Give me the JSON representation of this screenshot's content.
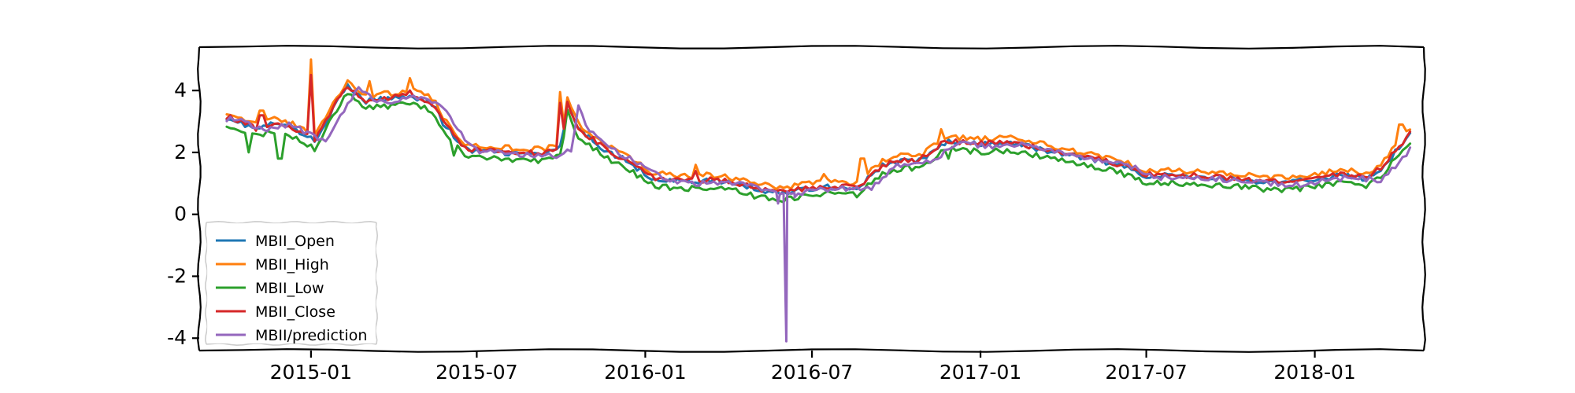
{
  "chart_data": {
    "type": "line",
    "title": "",
    "xlabel": "",
    "ylabel": "",
    "style": "xkcd",
    "legend_position": "lower-left",
    "grid": false,
    "xlim": [
      "2014-09-01",
      "2018-04-30"
    ],
    "ylim": [
      -4.4,
      5.4
    ],
    "x_ticks": [
      {
        "date": "2015-01-01",
        "label": "2015-01"
      },
      {
        "date": "2015-07-01",
        "label": "2015-07"
      },
      {
        "date": "2016-01-01",
        "label": "2016-01"
      },
      {
        "date": "2016-07-01",
        "label": "2016-07"
      },
      {
        "date": "2017-01-01",
        "label": "2017-01"
      },
      {
        "date": "2017-07-01",
        "label": "2017-07"
      },
      {
        "date": "2018-01-01",
        "label": "2018-01"
      }
    ],
    "y_ticks": [
      {
        "value": 4,
        "label": "4"
      },
      {
        "value": 2,
        "label": "2"
      },
      {
        "value": 0,
        "label": "0"
      },
      {
        "value": -2,
        "label": "-2"
      },
      {
        "value": -4,
        "label": "-4"
      }
    ],
    "base_dates": [
      "2014-10-01",
      "2014-11-01",
      "2014-11-25",
      "2014-12-20",
      "2015-01-05",
      "2015-01-20",
      "2015-02-10",
      "2015-03-01",
      "2015-04-01",
      "2015-04-20",
      "2015-05-15",
      "2015-05-25",
      "2015-06-20",
      "2015-07-15",
      "2015-08-15",
      "2015-09-15",
      "2015-10-01",
      "2015-10-08",
      "2015-10-20",
      "2015-11-20",
      "2015-12-10",
      "2016-01-10",
      "2016-02-15",
      "2016-03-15",
      "2016-04-15",
      "2016-05-01",
      "2016-06-01",
      "2016-06-20",
      "2016-07-15",
      "2016-08-05",
      "2016-08-20",
      "2016-09-15",
      "2016-10-10",
      "2016-10-25",
      "2016-11-25",
      "2017-01-01",
      "2017-02-01",
      "2017-03-01",
      "2017-04-01",
      "2017-05-01",
      "2017-06-01",
      "2017-07-01",
      "2017-08-01",
      "2017-09-01",
      "2017-10-01",
      "2017-11-01",
      "2017-12-01",
      "2018-01-01",
      "2018-02-01",
      "2018-03-01",
      "2018-03-20",
      "2018-04-05",
      "2018-04-15"
    ],
    "base_values": [
      3.1,
      2.7,
      2.9,
      2.6,
      2.3,
      3.1,
      4.1,
      3.6,
      3.7,
      3.8,
      3.5,
      2.9,
      2.0,
      2.0,
      1.9,
      1.9,
      2.1,
      3.5,
      2.7,
      2.0,
      1.7,
      1.1,
      1.0,
      1.05,
      0.9,
      0.75,
      0.65,
      0.75,
      0.85,
      0.8,
      0.8,
      1.5,
      1.7,
      1.65,
      2.3,
      2.2,
      2.25,
      2.1,
      1.9,
      1.75,
      1.55,
      1.2,
      1.2,
      1.15,
      1.1,
      1.0,
      0.95,
      1.1,
      1.2,
      1.1,
      1.6,
      2.2,
      2.5
    ],
    "prediction_spikes": [
      {
        "date": "2016-05-25",
        "value": 0.35
      },
      {
        "date": "2016-06-03",
        "value": -4.1
      },
      {
        "date": "2016-06-12",
        "value": 0.55
      }
    ],
    "series": [
      {
        "name": "MBII_Open",
        "color": "#1f77b4",
        "offset": 0.05,
        "lag_days": 0
      },
      {
        "name": "MBII_High",
        "color": "#ff7f0e",
        "offset": 0.22,
        "lag_days": 0,
        "spikes": [
          {
            "date": "2014-11-08",
            "value": 3.35
          },
          {
            "date": "2015-01-02",
            "value": 5.0
          },
          {
            "date": "2015-03-05",
            "value": 4.3
          },
          {
            "date": "2015-04-20",
            "value": 4.4
          },
          {
            "date": "2015-10-01",
            "value": 3.95
          },
          {
            "date": "2016-02-25",
            "value": 1.6
          },
          {
            "date": "2016-07-15",
            "value": 1.3
          },
          {
            "date": "2016-08-25",
            "value": 1.8
          },
          {
            "date": "2016-11-20",
            "value": 2.75
          },
          {
            "date": "2017-07-20",
            "value": 1.45
          },
          {
            "date": "2018-04-05",
            "value": 2.9
          },
          {
            "date": "2018-04-20",
            "value": 2.9
          }
        ]
      },
      {
        "name": "MBII_Low",
        "color": "#2ca02c",
        "offset": -0.18,
        "lag_days": 0,
        "spikes": [
          {
            "date": "2014-10-25",
            "value": 2.0
          },
          {
            "date": "2014-11-28",
            "value": 1.8
          },
          {
            "date": "2015-06-05",
            "value": 1.9
          },
          {
            "date": "2016-11-28",
            "value": 1.8
          }
        ]
      },
      {
        "name": "MBII_Close",
        "color": "#d62728",
        "offset": 0.08,
        "lag_days": 0,
        "spikes": [
          {
            "date": "2014-11-08",
            "value": 3.2
          },
          {
            "date": "2015-01-02",
            "value": 4.5
          },
          {
            "date": "2015-04-18",
            "value": 4.0
          },
          {
            "date": "2015-10-01",
            "value": 3.6
          },
          {
            "date": "2016-02-25",
            "value": 1.4
          },
          {
            "date": "2017-03-10",
            "value": 2.1
          }
        ]
      },
      {
        "name": "MBII/prediction",
        "color": "#9467bd",
        "offset": 0.0,
        "lag_days": 12
      }
    ]
  }
}
